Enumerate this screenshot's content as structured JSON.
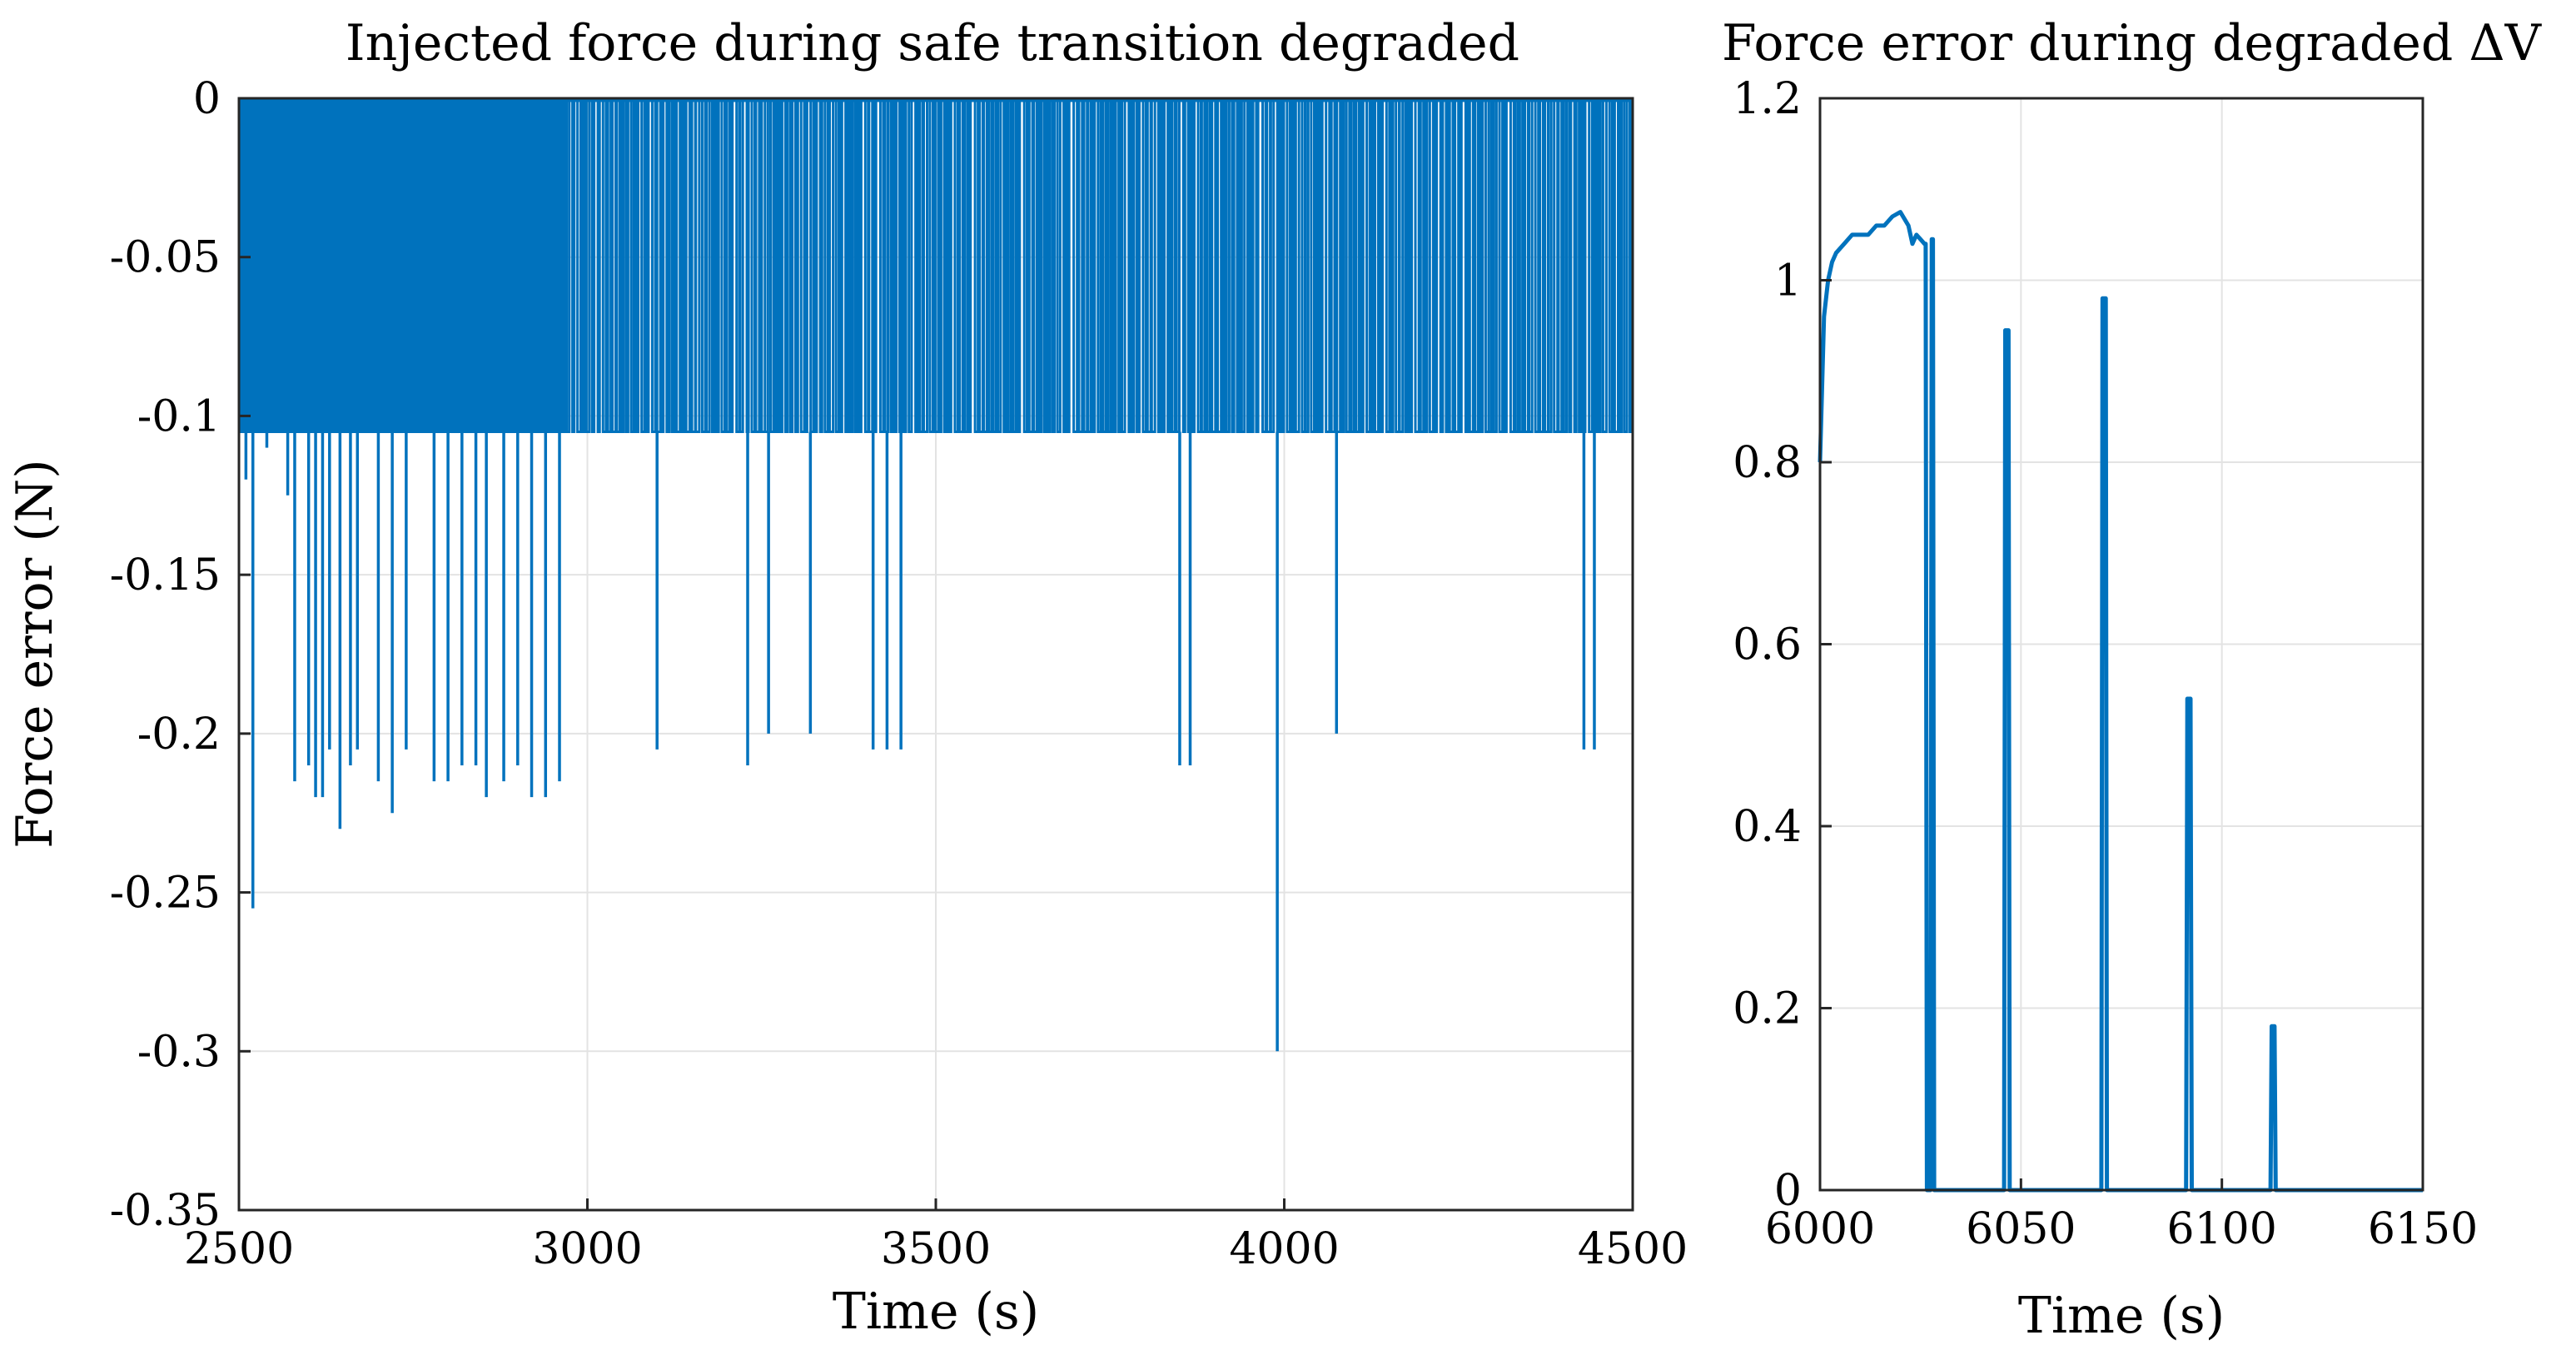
{
  "chart_data": [
    {
      "type": "line",
      "title": "Injected force during safe transition degraded",
      "xlabel": "Time (s)",
      "ylabel": "Force error (N)",
      "xlim": [
        2500,
        4500
      ],
      "ylim": [
        -0.35,
        0
      ],
      "xticks": [
        2500,
        3000,
        3500,
        4000,
        4500
      ],
      "xtick_labels": [
        "2500",
        "3000",
        "3500",
        "4000",
        "4500"
      ],
      "yticks": [
        0,
        -0.05,
        -0.1,
        -0.15,
        -0.2,
        -0.25,
        -0.3,
        -0.35
      ],
      "ytick_labels": [
        "0",
        "-0.05",
        "-0.1",
        "-0.15",
        "-0.2",
        "-0.25",
        "-0.3",
        "-0.35"
      ],
      "grid": true,
      "color": "#0072BD",
      "description_of_signal": "dense oscillation between 0 and about -0.105 N with occasional deeper negative spikes",
      "baseline_low": -0.105,
      "dense_region_end": 2970,
      "dense_oscillations": 340,
      "sparse_oscillations": 215,
      "spikes": [
        {
          "x": 2510,
          "y": -0.12
        },
        {
          "x": 2520,
          "y": -0.255
        },
        {
          "x": 2540,
          "y": -0.11
        },
        {
          "x": 2570,
          "y": -0.125
        },
        {
          "x": 2580,
          "y": -0.215
        },
        {
          "x": 2600,
          "y": -0.21
        },
        {
          "x": 2610,
          "y": -0.22
        },
        {
          "x": 2620,
          "y": -0.22
        },
        {
          "x": 2630,
          "y": -0.205
        },
        {
          "x": 2645,
          "y": -0.23
        },
        {
          "x": 2660,
          "y": -0.21
        },
        {
          "x": 2670,
          "y": -0.205
        },
        {
          "x": 2700,
          "y": -0.215
        },
        {
          "x": 2720,
          "y": -0.225
        },
        {
          "x": 2740,
          "y": -0.205
        },
        {
          "x": 2780,
          "y": -0.215
        },
        {
          "x": 2800,
          "y": -0.215
        },
        {
          "x": 2820,
          "y": -0.21
        },
        {
          "x": 2840,
          "y": -0.21
        },
        {
          "x": 2855,
          "y": -0.22
        },
        {
          "x": 2880,
          "y": -0.215
        },
        {
          "x": 2900,
          "y": -0.21
        },
        {
          "x": 2920,
          "y": -0.22
        },
        {
          "x": 2940,
          "y": -0.22
        },
        {
          "x": 2960,
          "y": -0.215
        },
        {
          "x": 3100,
          "y": -0.205
        },
        {
          "x": 3230,
          "y": -0.21
        },
        {
          "x": 3260,
          "y": -0.2
        },
        {
          "x": 3320,
          "y": -0.2
        },
        {
          "x": 3410,
          "y": -0.205
        },
        {
          "x": 3430,
          "y": -0.205
        },
        {
          "x": 3450,
          "y": -0.205
        },
        {
          "x": 3850,
          "y": -0.21
        },
        {
          "x": 3865,
          "y": -0.21
        },
        {
          "x": 3990,
          "y": -0.3
        },
        {
          "x": 4075,
          "y": -0.2
        },
        {
          "x": 4430,
          "y": -0.205
        },
        {
          "x": 4445,
          "y": -0.205
        }
      ]
    },
    {
      "type": "line",
      "title": "Force error during degraded ΔV",
      "xlabel": "Time (s)",
      "ylabel": "",
      "xlim": [
        6000,
        6150
      ],
      "ylim": [
        0,
        1.2
      ],
      "xticks": [
        6000,
        6050,
        6100,
        6150
      ],
      "xtick_labels": [
        "6000",
        "6050",
        "6100",
        "6150"
      ],
      "yticks": [
        0,
        0.2,
        0.4,
        0.6,
        0.8,
        1,
        1.2
      ],
      "ytick_labels": [
        "0",
        "0.2",
        "0.4",
        "0.6",
        "0.8",
        "1",
        "1.2"
      ],
      "grid": true,
      "color": "#0072BD",
      "x": [
        6000,
        6000.5,
        6001,
        6002,
        6003,
        6004,
        6006,
        6008,
        6010,
        6012,
        6014,
        6016,
        6018,
        6020,
        6022,
        6023,
        6024,
        6025,
        6026,
        6026.3,
        6026.6,
        6027.5,
        6027.8,
        6028.1,
        6028.4,
        6045.8,
        6046.1,
        6046.9,
        6047.2,
        6070,
        6070.3,
        6071.1,
        6071.4,
        6091.1,
        6091.4,
        6092.2,
        6092.5,
        6112.1,
        6112.4,
        6113.1,
        6113.4,
        6150
      ],
      "y": [
        0.8,
        0.88,
        0.96,
        1.0,
        1.02,
        1.03,
        1.04,
        1.05,
        1.05,
        1.05,
        1.06,
        1.06,
        1.07,
        1.075,
        1.06,
        1.04,
        1.05,
        1.045,
        1.04,
        1.04,
        0.0,
        0.0,
        1.045,
        1.045,
        0.0,
        0.0,
        0.945,
        0.945,
        0.0,
        0.0,
        0.98,
        0.98,
        0.0,
        0.0,
        0.54,
        0.54,
        0.0,
        0.0,
        0.18,
        0.18,
        0.0,
        0.0
      ]
    }
  ]
}
